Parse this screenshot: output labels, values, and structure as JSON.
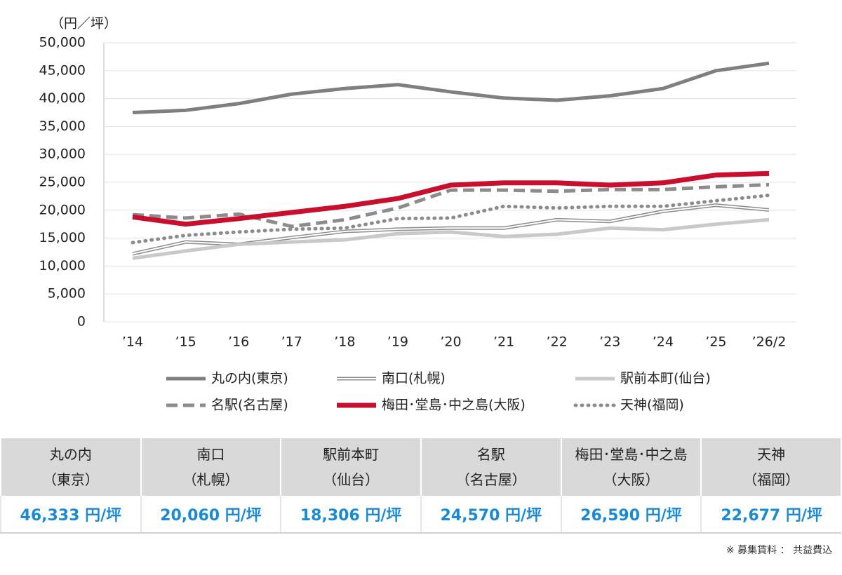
{
  "chart_data": {
    "type": "line",
    "y_label": "（円／坪）",
    "categories": [
      "’14",
      "’15",
      "’16",
      "’17",
      "’18",
      "’19",
      "’20",
      "’21",
      "’22",
      "’23",
      "’24",
      "’25",
      "’26/2"
    ],
    "ylim": [
      0,
      50000
    ],
    "yticks": [
      0,
      {
        "value": 5000,
        "label": "5,000"
      },
      {
        "value": 10000,
        "label": "10,000"
      },
      {
        "value": 15000,
        "label": "15,000"
      },
      {
        "value": 20000,
        "label": "20,000"
      },
      {
        "value": 25000,
        "label": "25,000"
      },
      {
        "value": 30000,
        "label": "30,000"
      },
      {
        "value": 35000,
        "label": "35,000"
      },
      {
        "value": 40000,
        "label": "40,000"
      },
      {
        "value": 45000,
        "label": "45,000"
      },
      {
        "value": 50000,
        "label": "50,000"
      }
    ],
    "grid": true,
    "series": [
      {
        "name": "丸の内(東京)",
        "color": "#7f7f7f",
        "line_style": "solid",
        "values": [
          37500,
          37900,
          39100,
          40800,
          41800,
          42500,
          41200,
          40100,
          39700,
          40500,
          41800,
          45000,
          46333
        ]
      },
      {
        "name": "南口(札幌)",
        "color": "#8c8c8c",
        "line_style": "double",
        "values": [
          12200,
          14300,
          13900,
          15100,
          16200,
          16600,
          16800,
          16800,
          18300,
          18000,
          19800,
          20900,
          20060
        ]
      },
      {
        "name": "駅前本町(仙台)",
        "color": "#c9c9c9",
        "line_style": "solid",
        "values": [
          11400,
          12700,
          13900,
          14300,
          14700,
          15800,
          16100,
          15300,
          15700,
          16800,
          16500,
          17500,
          18306
        ]
      },
      {
        "name": "名駅(名古屋)",
        "color": "#8c8c8c",
        "line_style": "dashed",
        "values": [
          19200,
          18600,
          19300,
          17100,
          18300,
          20400,
          23600,
          23600,
          23400,
          23700,
          23700,
          24200,
          24570
        ]
      },
      {
        "name": "梅田･堂島･中之島(大阪)",
        "color": "#c8102e",
        "line_style": "solid",
        "values": [
          18800,
          17500,
          18500,
          19600,
          20700,
          22100,
          24500,
          24900,
          24900,
          24500,
          24900,
          26300,
          26590
        ]
      },
      {
        "name": "天神(福岡)",
        "color": "#8c8c8c",
        "line_style": "dotted",
        "values": [
          14200,
          15500,
          16100,
          16600,
          16800,
          18500,
          18600,
          20700,
          20400,
          20700,
          20700,
          21700,
          22677
        ]
      }
    ]
  },
  "table": {
    "headers": [
      [
        "丸の内",
        "（東京）"
      ],
      [
        "南口",
        "（札幌）"
      ],
      [
        "駅前本町",
        "（仙台）"
      ],
      [
        "名駅",
        "（名古屋）"
      ],
      [
        "梅田･堂島･中之島",
        "（大阪）"
      ],
      [
        "天神",
        "（福岡）"
      ]
    ],
    "values": [
      "46,333 円/坪",
      "20,060 円/坪",
      "18,306 円/坪",
      "24,570 円/坪",
      "26,590 円/坪",
      "22,677 円/坪"
    ]
  },
  "note": "※ 募集賃料 ： 共益費込"
}
